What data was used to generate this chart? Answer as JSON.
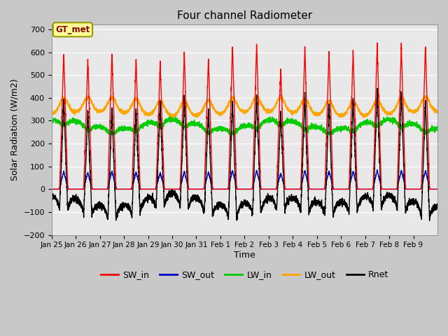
{
  "title": "Four channel Radiometer",
  "xlabel": "Time",
  "ylabel": "Solar Radiation (W/m2)",
  "background_color": "#c8c8c8",
  "plot_bg_color": "#e8e8e8",
  "ylim": [
    -200,
    720
  ],
  "yticks": [
    -200,
    -100,
    0,
    100,
    200,
    300,
    400,
    500,
    600,
    700
  ],
  "x_labels": [
    "Jan 25",
    "Jan 26",
    "Jan 27",
    "Jan 28",
    "Jan 29",
    "Jan 30",
    "Jan 31",
    "Feb 1",
    "Feb 2",
    "Feb 3",
    "Feb 4",
    "Feb 5",
    "Feb 6",
    "Feb 7",
    "Feb 8",
    "Feb 9"
  ],
  "n_days": 16,
  "station_label": "GT_met",
  "SW_in_color": "#ff0000",
  "SW_out_color": "#0000cc",
  "LW_in_color": "#00cc00",
  "LW_out_color": "#ffa500",
  "Rnet_color": "#000000",
  "line_width": 1.0,
  "legend_entries": [
    "SW_in",
    "SW_out",
    "LW_in",
    "LW_out",
    "Rnet"
  ],
  "sw_in_peaks": [
    600,
    570,
    600,
    575,
    555,
    600,
    575,
    630,
    640,
    530,
    625,
    610,
    605,
    640,
    635,
    630
  ]
}
